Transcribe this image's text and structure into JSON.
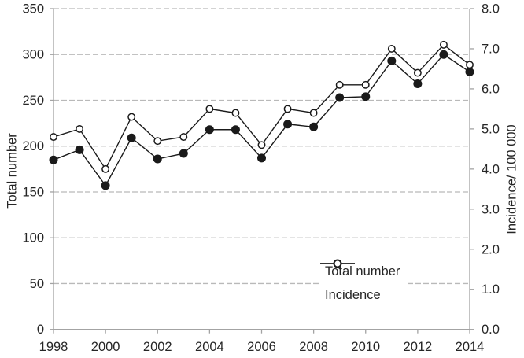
{
  "chart_data": {
    "type": "line",
    "title": "",
    "x": [
      1998,
      1999,
      2000,
      2001,
      2002,
      2003,
      2004,
      2005,
      2006,
      2007,
      2008,
      2009,
      2010,
      2011,
      2012,
      2013,
      2014
    ],
    "series": [
      {
        "name": "Total number",
        "axis": "left",
        "marker": "filled-circle",
        "values": [
          185,
          196,
          157,
          209,
          186,
          192,
          218,
          218,
          187,
          224,
          221,
          253,
          254,
          293,
          268,
          300,
          281
        ]
      },
      {
        "name": "Incidence",
        "axis": "right",
        "marker": "open-circle",
        "values": [
          4.8,
          5.0,
          4.0,
          5.3,
          4.7,
          4.8,
          5.5,
          5.4,
          4.6,
          5.5,
          5.4,
          6.1,
          6.1,
          7.0,
          6.4,
          7.1,
          6.6
        ]
      }
    ],
    "left_axis": {
      "label": "Total number",
      "min": 0,
      "max": 350,
      "step": 50
    },
    "right_axis": {
      "label": "Incidence/ 100 000",
      "min": 0,
      "max": 8,
      "step": 1,
      "decimals": 1
    },
    "x_axis": {
      "tick_start": 1998,
      "tick_end": 2014,
      "tick_step": 2
    },
    "legend": {
      "position": "inside-bottom-right",
      "entries": [
        "Total number",
        "Incidence"
      ]
    },
    "grid": "dashed-horizontal",
    "colors": {
      "series": "#1a1a1a",
      "marker_open_fill": "#ffffff",
      "gridline": "#b9b9b9",
      "axis_line": "#a3a3a3",
      "text": "#262626",
      "background": "#ffffff"
    }
  }
}
